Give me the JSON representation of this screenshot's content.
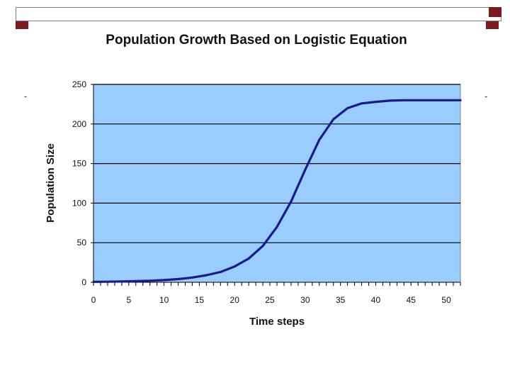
{
  "colors": {
    "accent": "#7b1a1a",
    "plot_bg": "#99ccff",
    "series": "#1a1a8c",
    "gridline": "#000000"
  },
  "slide": {
    "dash_left": "-",
    "dash_right": "-"
  },
  "chart_data": {
    "type": "line",
    "title": "Population Growth Based on Logistic Equation",
    "xlabel": "Time steps",
    "ylabel": "Population Size",
    "xlim": [
      0,
      52
    ],
    "ylim": [
      0,
      250
    ],
    "x_ticks": [
      0,
      5,
      10,
      15,
      20,
      25,
      30,
      35,
      40,
      45,
      50
    ],
    "y_ticks": [
      0,
      50,
      100,
      150,
      200,
      250
    ],
    "grid": "horizontal",
    "legend": "none",
    "series": [
      {
        "x": [
          0,
          2,
          4,
          6,
          8,
          10,
          12,
          14,
          16,
          18,
          20,
          22,
          24,
          26,
          28,
          30,
          32,
          34,
          36,
          38,
          40,
          42,
          44,
          46,
          48,
          50,
          52
        ],
        "values": [
          0.5,
          0.7,
          1.0,
          1.4,
          2,
          2.8,
          4,
          6,
          9,
          13,
          20,
          30,
          46,
          70,
          102,
          142,
          180,
          206,
          220,
          226,
          228,
          229.5,
          230,
          230,
          230,
          230,
          230
        ]
      }
    ]
  }
}
